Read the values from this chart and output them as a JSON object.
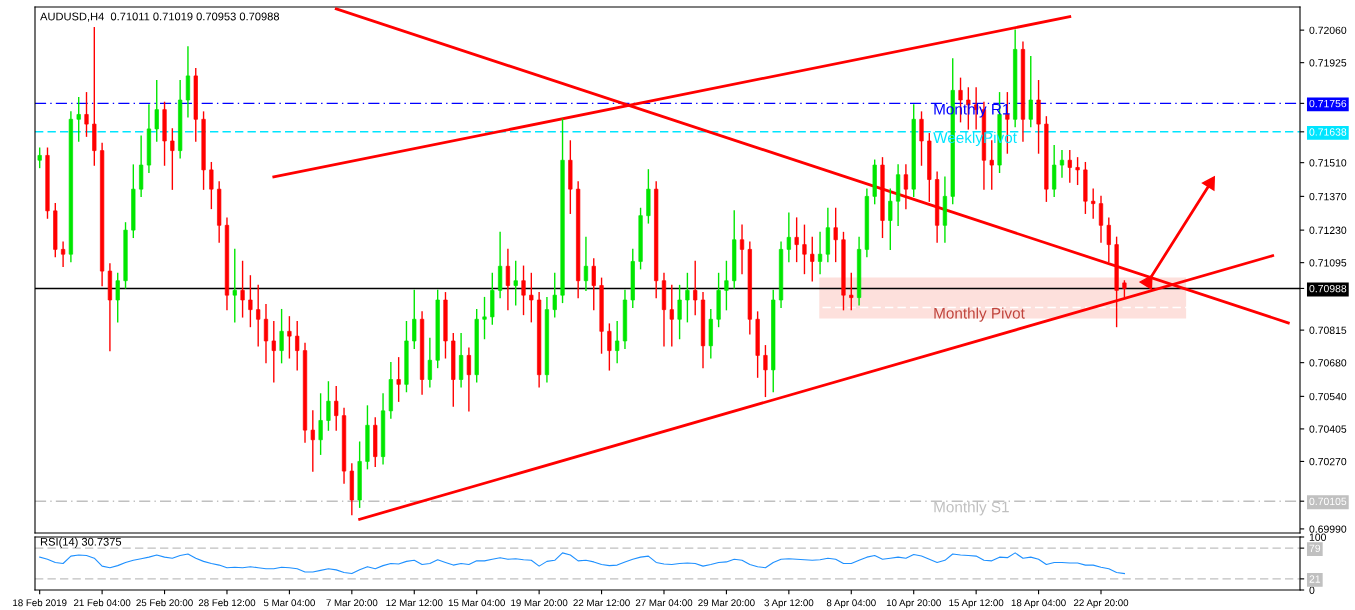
{
  "chart_data": [
    {
      "type": "candlestick",
      "title": "AUDUSD,H4  0.71011 0.71019 0.70953 0.70988",
      "tick_labels": "y",
      "categories": [
        null,
        null,
        null,
        null,
        null,
        null,
        null,
        null,
        null,
        null,
        null,
        null,
        null,
        null,
        null,
        null,
        null,
        null,
        null,
        null,
        null,
        null,
        null,
        null,
        null,
        null,
        null,
        null,
        null,
        null,
        null,
        null,
        null,
        null,
        null,
        null,
        null,
        null,
        null,
        null,
        null,
        null,
        null,
        null,
        null,
        null,
        null,
        null,
        null,
        null,
        null,
        null,
        null,
        null,
        null,
        null,
        null,
        null,
        null,
        null,
        null,
        null,
        null,
        null,
        null,
        null,
        null,
        null,
        null,
        null,
        null,
        null,
        null,
        null,
        null,
        null,
        null,
        null,
        null,
        null,
        null,
        null,
        null,
        null,
        null,
        null,
        null,
        null,
        null,
        null,
        null,
        null,
        null,
        null,
        null,
        null,
        null,
        null,
        null,
        null,
        null,
        null,
        null,
        null,
        null,
        null,
        null,
        null,
        null,
        null,
        null,
        null,
        null,
        null,
        null,
        null,
        null,
        null,
        null,
        null,
        null,
        null,
        null,
        null,
        null,
        null,
        null,
        null,
        null,
        null,
        null,
        null,
        null,
        null,
        null,
        null,
        null,
        null,
        null,
        null,
        null,
        null,
        null,
        null,
        null,
        null,
        null,
        null,
        null,
        null,
        null,
        null,
        null,
        null,
        null,
        null,
        null,
        null,
        null,
        null,
        null,
        null
      ],
      "ohlc": [
        [
          0.7152,
          0.7157,
          0.7149,
          0.7154
        ],
        [
          0.7154,
          0.7157,
          0.7128,
          0.7131
        ],
        [
          0.7131,
          0.7134,
          0.7112,
          0.7115
        ],
        [
          0.7115,
          0.7118,
          0.7108,
          0.7113
        ],
        [
          0.7113,
          0.7172,
          0.711,
          0.7169
        ],
        [
          0.7169,
          0.7178,
          0.716,
          0.7171
        ],
        [
          0.7171,
          0.718,
          0.7162,
          0.7167
        ],
        [
          0.7167,
          0.7207,
          0.715,
          0.7156
        ],
        [
          0.7156,
          0.7159,
          0.71,
          0.7106
        ],
        [
          0.7106,
          0.7109,
          0.7073,
          0.7094
        ],
        [
          0.7094,
          0.7105,
          0.7085,
          0.7102
        ],
        [
          0.7102,
          0.7126,
          0.7099,
          0.7123
        ],
        [
          0.7123,
          0.715,
          0.712,
          0.714
        ],
        [
          0.714,
          0.7162,
          0.7137,
          0.715
        ],
        [
          0.715,
          0.7175,
          0.7147,
          0.7165
        ],
        [
          0.7165,
          0.7185,
          0.716,
          0.7173
        ],
        [
          0.7173,
          0.7176,
          0.715,
          0.716
        ],
        [
          0.716,
          0.7165,
          0.714,
          0.7156
        ],
        [
          0.7156,
          0.7185,
          0.7153,
          0.7177
        ],
        [
          0.7177,
          0.7199,
          0.717,
          0.7187
        ],
        [
          0.7187,
          0.719,
          0.716,
          0.7169
        ],
        [
          0.7169,
          0.7172,
          0.714,
          0.7148
        ],
        [
          0.7148,
          0.7151,
          0.7132,
          0.714
        ],
        [
          0.714,
          0.7143,
          0.7118,
          0.7125
        ],
        [
          0.7125,
          0.7128,
          0.709,
          0.7096
        ],
        [
          0.7096,
          0.7115,
          0.7085,
          0.7098
        ],
        [
          0.7098,
          0.711,
          0.7087,
          0.7094
        ],
        [
          0.7094,
          0.7104,
          0.7083,
          0.709
        ],
        [
          0.709,
          0.71,
          0.7075,
          0.7086
        ],
        [
          0.7086,
          0.7092,
          0.7068,
          0.7077
        ],
        [
          0.7077,
          0.7085,
          0.706,
          0.7073
        ],
        [
          0.7073,
          0.709,
          0.7068,
          0.7081
        ],
        [
          0.7081,
          0.7087,
          0.707,
          0.7079
        ],
        [
          0.7079,
          0.7085,
          0.7065,
          0.7073
        ],
        [
          0.7073,
          0.7076,
          0.7035,
          0.704
        ],
        [
          0.704,
          0.7048,
          0.7023,
          0.7036
        ],
        [
          0.7036,
          0.7055,
          0.703,
          0.7044
        ],
        [
          0.7044,
          0.706,
          0.704,
          0.7052
        ],
        [
          0.7052,
          0.7058,
          0.704,
          0.7046
        ],
        [
          0.7046,
          0.7049,
          0.7018,
          0.7023
        ],
        [
          0.7023,
          0.7026,
          0.7005,
          0.7011
        ],
        [
          0.7011,
          0.7035,
          0.7008,
          0.7027
        ],
        [
          0.7027,
          0.705,
          0.7024,
          0.7042
        ],
        [
          0.7042,
          0.7045,
          0.7025,
          0.7029
        ],
        [
          0.7029,
          0.7055,
          0.7026,
          0.7048
        ],
        [
          0.7048,
          0.7068,
          0.7045,
          0.7061
        ],
        [
          0.7061,
          0.707,
          0.7052,
          0.7059
        ],
        [
          0.7059,
          0.7085,
          0.7056,
          0.7077
        ],
        [
          0.7077,
          0.7098,
          0.7074,
          0.7086
        ],
        [
          0.7086,
          0.7089,
          0.7055,
          0.7061
        ],
        [
          0.7061,
          0.7078,
          0.7058,
          0.7069
        ],
        [
          0.7069,
          0.7098,
          0.7066,
          0.7094
        ],
        [
          0.7094,
          0.7097,
          0.707,
          0.7077
        ],
        [
          0.7077,
          0.708,
          0.705,
          0.7061
        ],
        [
          0.7061,
          0.708,
          0.7058,
          0.7071
        ],
        [
          0.7071,
          0.7074,
          0.7048,
          0.7063
        ],
        [
          0.7063,
          0.709,
          0.706,
          0.7086
        ],
        [
          0.7086,
          0.7095,
          0.7078,
          0.7087
        ],
        [
          0.7087,
          0.7105,
          0.7084,
          0.7098
        ],
        [
          0.7098,
          0.7122,
          0.7095,
          0.7108
        ],
        [
          0.7108,
          0.7115,
          0.709,
          0.71
        ],
        [
          0.71,
          0.711,
          0.7092,
          0.7102
        ],
        [
          0.7102,
          0.7108,
          0.7088,
          0.7096
        ],
        [
          0.7096,
          0.7105,
          0.7085,
          0.7094
        ],
        [
          0.7094,
          0.7097,
          0.7058,
          0.7063
        ],
        [
          0.7063,
          0.7095,
          0.706,
          0.709
        ],
        [
          0.709,
          0.7105,
          0.7087,
          0.7096
        ],
        [
          0.7096,
          0.7169,
          0.7093,
          0.7152
        ],
        [
          0.7152,
          0.716,
          0.713,
          0.714
        ],
        [
          0.714,
          0.7143,
          0.7095,
          0.7102
        ],
        [
          0.7102,
          0.712,
          0.7098,
          0.7108
        ],
        [
          0.7108,
          0.7111,
          0.709,
          0.71
        ],
        [
          0.71,
          0.7103,
          0.7072,
          0.7081
        ],
        [
          0.7081,
          0.7084,
          0.7065,
          0.7073
        ],
        [
          0.7073,
          0.7085,
          0.7068,
          0.7077
        ],
        [
          0.7077,
          0.7098,
          0.7074,
          0.7094
        ],
        [
          0.7094,
          0.7115,
          0.7091,
          0.711
        ],
        [
          0.711,
          0.7132,
          0.7107,
          0.7129
        ],
        [
          0.7129,
          0.7148,
          0.7126,
          0.714
        ],
        [
          0.714,
          0.7143,
          0.7095,
          0.7102
        ],
        [
          0.7102,
          0.7105,
          0.7075,
          0.709
        ],
        [
          0.709,
          0.71,
          0.7075,
          0.7086
        ],
        [
          0.7086,
          0.71,
          0.7078,
          0.7094
        ],
        [
          0.7094,
          0.7105,
          0.7085,
          0.7098
        ],
        [
          0.7098,
          0.711,
          0.7088,
          0.7094
        ],
        [
          0.7094,
          0.7097,
          0.7066,
          0.7075
        ],
        [
          0.7075,
          0.709,
          0.707,
          0.7086
        ],
        [
          0.7086,
          0.7105,
          0.7083,
          0.7098
        ],
        [
          0.7098,
          0.711,
          0.709,
          0.7102
        ],
        [
          0.7102,
          0.7131,
          0.7099,
          0.7119
        ],
        [
          0.7119,
          0.7125,
          0.7105,
          0.7115
        ],
        [
          0.7115,
          0.7118,
          0.708,
          0.7086
        ],
        [
          0.7086,
          0.7089,
          0.7062,
          0.7071
        ],
        [
          0.7071,
          0.7075,
          0.7054,
          0.7065
        ],
        [
          0.7065,
          0.7098,
          0.7056,
          0.7094
        ],
        [
          0.7094,
          0.7118,
          0.7091,
          0.7115
        ],
        [
          0.7115,
          0.713,
          0.711,
          0.712
        ],
        [
          0.712,
          0.7128,
          0.711,
          0.7117
        ],
        [
          0.7117,
          0.7125,
          0.7105,
          0.7113
        ],
        [
          0.7113,
          0.712,
          0.7102,
          0.711
        ],
        [
          0.711,
          0.7122,
          0.7105,
          0.7113
        ],
        [
          0.7113,
          0.7132,
          0.711,
          0.7124
        ],
        [
          0.7124,
          0.7132,
          0.711,
          0.7119
        ],
        [
          0.7119,
          0.7122,
          0.709,
          0.7096
        ],
        [
          0.7096,
          0.7105,
          0.709,
          0.7095
        ],
        [
          0.7095,
          0.712,
          0.7092,
          0.7115
        ],
        [
          0.7115,
          0.714,
          0.7112,
          0.7137
        ],
        [
          0.7137,
          0.7152,
          0.7134,
          0.715
        ],
        [
          0.715,
          0.7153,
          0.712,
          0.7127
        ],
        [
          0.7127,
          0.714,
          0.7115,
          0.7135
        ],
        [
          0.7135,
          0.715,
          0.7125,
          0.7146
        ],
        [
          0.7146,
          0.715,
          0.7132,
          0.714
        ],
        [
          0.714,
          0.7175,
          0.7137,
          0.7169
        ],
        [
          0.7169,
          0.7172,
          0.715,
          0.716
        ],
        [
          0.716,
          0.7163,
          0.7135,
          0.7144
        ],
        [
          0.7144,
          0.7147,
          0.7118,
          0.7125
        ],
        [
          0.7125,
          0.7145,
          0.7118,
          0.7137
        ],
        [
          0.7137,
          0.7194,
          0.7134,
          0.7181
        ],
        [
          0.7181,
          0.7186,
          0.7168,
          0.7177
        ],
        [
          0.7177,
          0.7182,
          0.7165,
          0.7175
        ],
        [
          0.7175,
          0.7182,
          0.7165,
          0.7173
        ],
        [
          0.7173,
          0.7176,
          0.714,
          0.7152
        ],
        [
          0.7152,
          0.716,
          0.714,
          0.715
        ],
        [
          0.715,
          0.718,
          0.7147,
          0.7171
        ],
        [
          0.7171,
          0.718,
          0.7155,
          0.7169
        ],
        [
          0.7169,
          0.7206,
          0.7166,
          0.7198
        ],
        [
          0.7198,
          0.7201,
          0.716,
          0.7169
        ],
        [
          0.7169,
          0.7195,
          0.7166,
          0.7177
        ],
        [
          0.7177,
          0.7185,
          0.7155,
          0.7167
        ],
        [
          0.7167,
          0.717,
          0.7135,
          0.714
        ],
        [
          0.714,
          0.7158,
          0.7137,
          0.715
        ],
        [
          0.715,
          0.7156,
          0.7145,
          0.7152
        ],
        [
          0.7152,
          0.7156,
          0.7143,
          0.7149
        ],
        [
          0.7149,
          0.7153,
          0.7142,
          0.7148
        ],
        [
          0.7148,
          0.7151,
          0.713,
          0.7135
        ],
        [
          0.7135,
          0.714,
          0.7128,
          0.7134
        ],
        [
          0.7134,
          0.7137,
          0.7118,
          0.7125
        ],
        [
          0.7125,
          0.7128,
          0.711,
          0.7117
        ],
        [
          0.7117,
          0.712,
          0.7083,
          0.7098
        ],
        [
          0.71011,
          0.71019,
          0.70953,
          0.70988
        ],
        null,
        null,
        null,
        null,
        null,
        null,
        null,
        null,
        null,
        null,
        null,
        null,
        null,
        null,
        null,
        null,
        null,
        null,
        null,
        null,
        null,
        null
      ],
      "colors": [
        "#00e600",
        "#ff0000",
        "#ff0000",
        "#ff0000",
        "#00e600",
        "#00e600",
        "#ff0000",
        "#ff0000",
        "#ff0000",
        "#ff0000",
        "#00e600",
        "#00e600",
        "#00e600",
        "#00e600",
        "#00e600",
        "#00e600",
        "#ff0000",
        "#ff0000",
        "#00e600",
        "#00e600",
        "#ff0000",
        "#ff0000",
        "#ff0000",
        "#ff0000",
        "#ff0000",
        "#00e600",
        "#ff0000",
        "#ff0000",
        "#ff0000",
        "#ff0000",
        "#ff0000",
        "#00e600",
        "#ff0000",
        "#ff0000",
        "#ff0000",
        "#ff0000",
        "#00e600",
        "#00e600",
        "#ff0000",
        "#ff0000",
        "#ff0000",
        "#00e600",
        "#00e600",
        "#ff0000",
        "#00e600",
        "#00e600",
        "#ff0000",
        "#00e600",
        "#00e600",
        "#ff0000",
        "#00e600",
        "#00e600",
        "#ff0000",
        "#ff0000",
        "#00e600",
        "#ff0000",
        "#00e600",
        "#00e600",
        "#00e600",
        "#00e600",
        "#ff0000",
        "#00e600",
        "#ff0000",
        "#ff0000",
        "#ff0000",
        "#00e600",
        "#00e600",
        "#00e600",
        "#ff0000",
        "#ff0000",
        "#00e600",
        "#ff0000",
        "#ff0000",
        "#ff0000",
        "#00e600",
        "#00e600",
        "#00e600",
        "#00e600",
        "#00e600",
        "#ff0000",
        "#ff0000",
        "#ff0000",
        "#00e600",
        "#00e600",
        "#ff0000",
        "#ff0000",
        "#00e600",
        "#00e600",
        "#00e600",
        "#00e600",
        "#ff0000",
        "#ff0000",
        "#ff0000",
        "#ff0000",
        "#00e600",
        "#00e600",
        "#00e600",
        "#ff0000",
        "#ff0000",
        "#ff0000",
        "#00e600",
        "#00e600",
        "#ff0000",
        "#ff0000",
        "#ff0000",
        "#00e600",
        "#00e600",
        "#00e600",
        "#ff0000",
        "#00e600",
        "#00e600",
        "#ff0000",
        "#00e600",
        "#ff0000",
        "#ff0000",
        "#ff0000",
        "#00e600",
        "#00e600",
        "#ff0000",
        "#ff0000",
        "#ff0000",
        "#ff0000",
        "#ff0000",
        "#00e600",
        "#ff0000",
        "#00e600",
        "#ff0000",
        "#00e600",
        "#ff0000",
        "#ff0000",
        "#00e600",
        "#00e600",
        "#ff0000",
        "#ff0000",
        "#ff0000",
        "#ff0000",
        "#ff0000",
        "#ff0000",
        "#ff0000",
        "#ff0000",
        null,
        null,
        null,
        null,
        null,
        null,
        null,
        null,
        null,
        null,
        null,
        null,
        null,
        null,
        null,
        null,
        null,
        null,
        null,
        null,
        null,
        null
      ],
      "series": [
        {
          "type": "line",
          "values": [
            null,
            null,
            null,
            null,
            null,
            null,
            null,
            null,
            null,
            null,
            null,
            null,
            null,
            null,
            null,
            null,
            null,
            null,
            null,
            null,
            null,
            null,
            null,
            null,
            null,
            null,
            null,
            null,
            null,
            null,
            null,
            null,
            null,
            null,
            null,
            null,
            null,
            null,
            0.72148,
            null,
            null,
            null,
            null,
            null,
            null,
            null,
            null,
            null,
            null,
            null,
            null,
            null,
            null,
            null,
            null,
            null,
            null,
            null,
            null,
            null,
            null,
            null,
            null,
            null,
            null,
            null,
            null,
            null,
            null,
            null,
            null,
            null,
            null,
            null,
            null,
            null,
            null,
            null,
            null,
            null,
            null,
            null,
            null,
            null,
            null,
            null,
            null,
            null,
            null,
            null,
            null,
            null,
            null,
            null,
            null,
            null,
            null,
            null,
            null,
            null,
            null,
            null,
            null,
            null,
            null,
            null,
            null,
            null,
            null,
            null,
            null,
            null,
            null,
            null,
            null,
            null,
            null,
            null,
            null,
            null,
            null,
            null,
            null,
            null,
            null,
            null,
            null,
            null,
            null,
            null,
            null,
            null,
            null,
            null,
            null,
            null,
            null,
            null,
            null,
            null,
            null,
            null,
            null,
            null,
            null,
            null,
            null,
            null,
            null,
            null,
            null,
            null,
            null,
            null,
            null,
            null,
            null,
            null,
            null,
            null,
            0.70845,
            null
          ],
          "color": "#ff0000"
        },
        {
          "type": "line",
          "values": [
            null,
            null,
            null,
            null,
            null,
            null,
            null,
            null,
            null,
            null,
            null,
            null,
            null,
            null,
            null,
            null,
            null,
            null,
            null,
            null,
            null,
            null,
            null,
            null,
            null,
            null,
            null,
            null,
            null,
            null,
            0.71451,
            null,
            null,
            null,
            null,
            null,
            null,
            null,
            null,
            null,
            null,
            null,
            null,
            null,
            null,
            null,
            null,
            null,
            null,
            null,
            null,
            null,
            null,
            null,
            null,
            null,
            null,
            null,
            null,
            null,
            null,
            null,
            null,
            null,
            null,
            null,
            null,
            null,
            null,
            null,
            null,
            null,
            null,
            null,
            null,
            null,
            null,
            null,
            null,
            null,
            null,
            null,
            null,
            null,
            null,
            null,
            null,
            null,
            null,
            null,
            null,
            null,
            null,
            null,
            null,
            null,
            null,
            null,
            null,
            null,
            null,
            null,
            null,
            null,
            null,
            null,
            null,
            null,
            null,
            null,
            null,
            null,
            null,
            null,
            null,
            null,
            null,
            null,
            null,
            null,
            null,
            null,
            null,
            null,
            null,
            null,
            null,
            null,
            null,
            null,
            null,
            null,
            0.72116,
            null,
            null,
            null,
            null,
            null,
            null,
            null,
            null,
            null,
            null,
            null,
            null,
            null,
            null,
            null,
            null,
            null,
            null,
            null,
            null,
            null,
            null,
            null,
            null,
            null,
            null,
            null,
            null,
            null
          ],
          "color": "#ff0000"
        },
        {
          "type": "line",
          "values": [
            null,
            null,
            null,
            null,
            null,
            null,
            null,
            null,
            null,
            null,
            null,
            null,
            null,
            null,
            null,
            null,
            null,
            null,
            null,
            null,
            null,
            null,
            null,
            null,
            null,
            null,
            null,
            null,
            null,
            null,
            null,
            null,
            null,
            null,
            null,
            null,
            null,
            null,
            null,
            null,
            null,
            0.7003,
            null,
            null,
            null,
            null,
            null,
            null,
            null,
            null,
            null,
            null,
            null,
            null,
            null,
            null,
            null,
            null,
            null,
            null,
            null,
            null,
            null,
            null,
            null,
            null,
            null,
            null,
            null,
            null,
            null,
            null,
            null,
            null,
            null,
            null,
            null,
            null,
            null,
            null,
            null,
            null,
            null,
            null,
            null,
            null,
            null,
            null,
            null,
            null,
            null,
            null,
            null,
            null,
            null,
            null,
            null,
            null,
            null,
            null,
            null,
            null,
            null,
            null,
            null,
            null,
            null,
            null,
            null,
            null,
            null,
            null,
            null,
            null,
            null,
            null,
            null,
            null,
            null,
            null,
            null,
            null,
            null,
            null,
            null,
            null,
            null,
            null,
            null,
            null,
            null,
            null,
            null,
            null,
            null,
            null,
            null,
            null,
            null,
            null,
            null,
            null,
            null,
            null,
            null,
            null,
            null,
            null,
            null,
            null,
            null,
            null,
            null,
            null,
            null,
            null,
            null,
            null,
            0.71124,
            null,
            null,
            null
          ],
          "color": "#ff0000"
        },
        {
          "type": "line",
          "values": [
            null,
            null,
            null,
            null,
            null,
            null,
            null,
            null,
            null,
            null,
            null,
            null,
            null,
            null,
            null,
            null,
            null,
            null,
            null,
            null,
            null,
            null,
            null,
            null,
            null,
            null,
            null,
            null,
            null,
            null,
            null,
            null,
            null,
            null,
            null,
            null,
            null,
            null,
            null,
            null,
            null,
            null,
            null,
            null,
            null,
            null,
            null,
            null,
            null,
            null,
            null,
            null,
            null,
            null,
            null,
            null,
            null,
            null,
            null,
            null,
            null,
            null,
            null,
            null,
            null,
            null,
            null,
            null,
            null,
            null,
            null,
            null,
            null,
            null,
            null,
            null,
            null,
            null,
            null,
            null,
            null,
            null,
            null,
            null,
            null,
            null,
            null,
            null,
            null,
            null,
            null,
            null,
            null,
            null,
            null,
            null,
            null,
            null,
            null,
            null,
            null,
            null,
            null,
            null,
            null,
            null,
            null,
            null,
            null,
            null,
            null,
            null,
            null,
            null,
            null,
            null,
            null,
            null,
            null,
            null,
            null,
            null,
            null,
            null,
            null,
            null,
            null,
            null,
            null,
            null,
            null,
            null,
            null,
            null,
            null,
            null,
            null,
            null,
            null,
            null,
            null,
            null,
            0.71014,
            null,
            null,
            null,
            null,
            null,
            null,
            null,
            0.71424,
            null,
            null,
            null,
            null,
            null,
            null,
            null,
            null,
            null,
            null,
            null
          ],
          "color": "#ff0000",
          "marker": "triangle"
        }
      ],
      "ref_lines": [
        {
          "axis": "y",
          "value": 0.71756,
          "label": "Monthly R1",
          "color": "#0000ff",
          "line_style": "dashdot"
        },
        {
          "axis": "y",
          "value": 0.71638,
          "label": "WeeklyPivot",
          "color": "#00e5ff",
          "line_style": "dashed"
        },
        {
          "axis": "y",
          "value": 0.70988,
          "label": null,
          "color": "#000000",
          "line_style": "solid"
        },
        {
          "axis": "y",
          "value": 0.70909,
          "label": "Monthly Pivot",
          "color": "#ffffff",
          "line_style": "dashed"
        },
        {
          "axis": "y",
          "value": 0.70105,
          "label": "Monthly S1",
          "color": "#c0c0c0",
          "line_style": "dashdot"
        }
      ],
      "bands": [
        {
          "axis": "y",
          "from": 0.70863,
          "to": 0.71033,
          "label": null,
          "color": "#fde0dc"
        }
      ],
      "ylim": [
        0.69973,
        0.72156
      ],
      "yticks": [
        {
          "value": 0.7206,
          "label": "0.72060"
        },
        {
          "value": 0.71925,
          "label": "0.71925"
        },
        {
          "value": 0.71756,
          "label": "0.71756"
        },
        {
          "value": 0.71638,
          "label": "0.71638"
        },
        {
          "value": 0.7151,
          "label": "0.71510"
        },
        {
          "value": 0.7137,
          "label": "0.71370"
        },
        {
          "value": 0.7123,
          "label": "0.71230"
        },
        {
          "value": 0.71095,
          "label": "0.71095"
        },
        {
          "value": 0.70988,
          "label": "0.70988"
        },
        {
          "value": 0.70815,
          "label": "0.70815"
        },
        {
          "value": 0.7068,
          "label": "0.70680"
        },
        {
          "value": 0.7054,
          "label": "0.70540"
        },
        {
          "value": 0.70405,
          "label": "0.70405"
        },
        {
          "value": 0.7027,
          "label": "0.70270"
        },
        {
          "value": 0.70105,
          "label": "0.70105"
        },
        {
          "value": 0.6999,
          "label": "0.69990"
        }
      ]
    },
    {
      "type": "line",
      "title": "RSI(14) 30.7375",
      "categories": [
        "18 Feb 2019",
        null,
        null,
        null,
        null,
        null,
        null,
        null,
        "21 Feb 04:00",
        null,
        null,
        null,
        null,
        null,
        null,
        null,
        "25 Feb 20:00",
        null,
        null,
        null,
        null,
        null,
        null,
        null,
        "28 Feb 12:00",
        null,
        null,
        null,
        null,
        null,
        null,
        null,
        "5 Mar 04:00",
        null,
        null,
        null,
        null,
        null,
        null,
        null,
        "7 Mar 20:00",
        null,
        null,
        null,
        null,
        null,
        null,
        null,
        "12 Mar 12:00",
        null,
        null,
        null,
        null,
        null,
        null,
        null,
        "15 Mar 04:00",
        null,
        null,
        null,
        null,
        null,
        null,
        null,
        "19 Mar 20:00",
        null,
        null,
        null,
        null,
        null,
        null,
        null,
        "22 Mar 12:00",
        null,
        null,
        null,
        null,
        null,
        null,
        null,
        "27 Mar 04:00",
        null,
        null,
        null,
        null,
        null,
        null,
        null,
        "29 Mar 20:00",
        null,
        null,
        null,
        null,
        null,
        null,
        null,
        "3 Apr 12:00",
        null,
        null,
        null,
        null,
        null,
        null,
        null,
        "8 Apr 04:00",
        null,
        null,
        null,
        null,
        null,
        null,
        null,
        "10 Apr 20:00",
        null,
        null,
        null,
        null,
        null,
        null,
        null,
        "15 Apr 12:00",
        null,
        null,
        null,
        null,
        null,
        null,
        null,
        "18 Apr 04:00",
        null,
        null,
        null,
        null,
        null,
        null,
        null,
        "22 Apr 20:00",
        null,
        null,
        null,
        null,
        null,
        null,
        null,
        null,
        null,
        null,
        null,
        null,
        null,
        null,
        null,
        null,
        null,
        null,
        null,
        null,
        null,
        null,
        null,
        null,
        null
      ],
      "series": [
        {
          "color": "#1e90ff",
          "values": [
            62,
            58,
            52,
            50,
            64,
            66,
            65,
            60,
            45,
            42,
            46,
            52,
            56,
            59,
            62,
            66,
            62,
            60,
            65,
            68,
            60,
            54,
            50,
            47,
            42,
            43,
            42,
            44,
            42,
            40,
            40,
            43,
            42,
            40,
            34,
            34,
            37,
            40,
            38,
            33,
            31,
            38,
            44,
            40,
            46,
            50,
            49,
            54,
            56,
            48,
            50,
            57,
            52,
            47,
            50,
            48,
            55,
            55,
            58,
            61,
            58,
            59,
            57,
            56,
            45,
            54,
            56,
            70,
            66,
            55,
            56,
            53,
            48,
            46,
            47,
            53,
            58,
            62,
            64,
            52,
            49,
            48,
            50,
            51,
            50,
            45,
            48,
            52,
            53,
            58,
            56,
            48,
            44,
            42,
            52,
            58,
            59,
            58,
            57,
            56,
            57,
            60,
            58,
            50,
            50,
            56,
            62,
            65,
            58,
            60,
            62,
            60,
            67,
            64,
            58,
            52,
            56,
            68,
            66,
            65,
            64,
            56,
            55,
            62,
            61,
            70,
            60,
            62,
            58,
            48,
            52,
            52,
            51,
            51,
            47,
            47,
            43,
            40,
            33,
            31,
            null,
            null,
            null,
            null,
            null,
            null,
            null,
            null,
            null,
            null,
            null,
            null,
            null,
            null,
            null,
            null,
            null,
            null,
            null,
            null,
            null,
            null
          ]
        }
      ],
      "ref_lines": [
        {
          "axis": "y",
          "value": 79,
          "label": null,
          "color": "#c0c0c0",
          "line_style": "dashed"
        },
        {
          "axis": "y",
          "value": 21,
          "label": null,
          "color": "#c0c0c0",
          "line_style": "dashed"
        }
      ],
      "ylim": [
        0,
        100
      ],
      "yticks": [
        0,
        21,
        79,
        100
      ]
    }
  ]
}
